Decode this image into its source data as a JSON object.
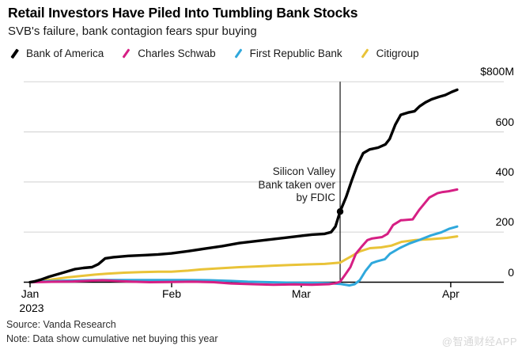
{
  "chart_data": {
    "type": "line",
    "title": "Retail Investors Have Piled Into Tumbling Bank Stocks",
    "subtitle": "SVB's failure, bank contagion fears spur buying",
    "source": "Source: Vanda Research",
    "note": "Note: Data show cumulative net buying this year",
    "watermark": "@智通财经APP",
    "ylabel_unit": "$M (cumulative net buying)",
    "ylim": [
      -20,
      820
    ],
    "grid": "horizontal",
    "legend_position": "top",
    "colors": {
      "grid": "#d8d8d8",
      "axis": "#000000",
      "bank_of_america": "#000000",
      "charles_schwab": "#d61f84",
      "first_republic": "#2fa8dc",
      "citigroup": "#e9c338"
    },
    "y_ticks": [
      {
        "label": "$800M",
        "value": 800
      },
      {
        "label": "600",
        "value": 600
      },
      {
        "label": "400",
        "value": 400
      },
      {
        "label": "200",
        "value": 200
      },
      {
        "label": "0",
        "value": 0
      }
    ],
    "x_ticks": [
      {
        "label": "Jan",
        "sublabel": "2023",
        "f": 0.0
      },
      {
        "label": "Feb",
        "sublabel": "",
        "f": 0.3315
      },
      {
        "label": "Mar",
        "sublabel": "",
        "f": 0.635
      },
      {
        "label": "Apr",
        "sublabel": "",
        "f": 0.985
      }
    ],
    "event": {
      "lines": [
        "Silicon Valley",
        "Bank taken over",
        "by FDIC"
      ],
      "f": 0.726,
      "dot_value": 282
    },
    "series": [
      {
        "name": "Citigroup",
        "color_key": "citigroup",
        "stroke_width": 3,
        "points": [
          [
            0.0,
            0
          ],
          [
            0.03,
            6
          ],
          [
            0.06,
            13
          ],
          [
            0.09,
            20
          ],
          [
            0.12,
            25
          ],
          [
            0.15,
            30
          ],
          [
            0.18,
            34
          ],
          [
            0.22,
            38
          ],
          [
            0.26,
            40
          ],
          [
            0.3,
            42
          ],
          [
            0.331,
            42
          ],
          [
            0.37,
            46
          ],
          [
            0.4,
            51
          ],
          [
            0.45,
            56
          ],
          [
            0.49,
            60
          ],
          [
            0.53,
            63
          ],
          [
            0.57,
            66
          ],
          [
            0.61,
            69
          ],
          [
            0.65,
            71
          ],
          [
            0.69,
            73
          ],
          [
            0.726,
            78
          ],
          [
            0.74,
            92
          ],
          [
            0.753,
            104
          ],
          [
            0.772,
            123
          ],
          [
            0.796,
            136
          ],
          [
            0.822,
            139
          ],
          [
            0.846,
            146
          ],
          [
            0.87,
            161
          ],
          [
            0.902,
            168
          ],
          [
            0.939,
            172
          ],
          [
            0.976,
            177
          ],
          [
            1.0,
            183
          ]
        ]
      },
      {
        "name": "First Republic Bank",
        "color_key": "first_republic",
        "stroke_width": 3,
        "points": [
          [
            0.0,
            0
          ],
          [
            0.04,
            4
          ],
          [
            0.08,
            6
          ],
          [
            0.13,
            8
          ],
          [
            0.18,
            9
          ],
          [
            0.24,
            9
          ],
          [
            0.3,
            9
          ],
          [
            0.36,
            9
          ],
          [
            0.42,
            8
          ],
          [
            0.47,
            5
          ],
          [
            0.51,
            2
          ],
          [
            0.56,
            0
          ],
          [
            0.61,
            -2
          ],
          [
            0.66,
            -3
          ],
          [
            0.7,
            -4
          ],
          [
            0.726,
            -7
          ],
          [
            0.748,
            -13
          ],
          [
            0.76,
            -8
          ],
          [
            0.772,
            8
          ],
          [
            0.785,
            44
          ],
          [
            0.8,
            76
          ],
          [
            0.812,
            83
          ],
          [
            0.831,
            92
          ],
          [
            0.843,
            114
          ],
          [
            0.865,
            136
          ],
          [
            0.889,
            155
          ],
          [
            0.915,
            171
          ],
          [
            0.939,
            187
          ],
          [
            0.963,
            199
          ],
          [
            0.981,
            213
          ],
          [
            1.0,
            222
          ]
        ]
      },
      {
        "name": "Charles Schwab",
        "color_key": "charles_schwab",
        "stroke_width": 3,
        "points": [
          [
            0.0,
            0
          ],
          [
            0.03,
            1
          ],
          [
            0.06,
            2
          ],
          [
            0.1,
            3
          ],
          [
            0.14,
            6
          ],
          [
            0.17,
            8
          ],
          [
            0.2,
            5
          ],
          [
            0.24,
            2
          ],
          [
            0.28,
            0
          ],
          [
            0.33,
            1
          ],
          [
            0.38,
            2
          ],
          [
            0.43,
            0
          ],
          [
            0.47,
            -5
          ],
          [
            0.52,
            -8
          ],
          [
            0.57,
            -10
          ],
          [
            0.62,
            -9
          ],
          [
            0.66,
            -10
          ],
          [
            0.7,
            -8
          ],
          [
            0.715,
            -4
          ],
          [
            0.726,
            2
          ],
          [
            0.737,
            28
          ],
          [
            0.75,
            60
          ],
          [
            0.763,
            114
          ],
          [
            0.778,
            145
          ],
          [
            0.79,
            168
          ],
          [
            0.8,
            174
          ],
          [
            0.824,
            180
          ],
          [
            0.837,
            193
          ],
          [
            0.85,
            228
          ],
          [
            0.868,
            247
          ],
          [
            0.896,
            251
          ],
          [
            0.911,
            288
          ],
          [
            0.935,
            338
          ],
          [
            0.954,
            355
          ],
          [
            0.966,
            360
          ],
          [
            0.98,
            363
          ],
          [
            1.0,
            370
          ]
        ]
      },
      {
        "name": "Bank of America",
        "color_key": "bank_of_america",
        "stroke_width": 3.4,
        "points": [
          [
            0.0,
            0
          ],
          [
            0.01,
            3
          ],
          [
            0.025,
            10
          ],
          [
            0.045,
            22
          ],
          [
            0.065,
            32
          ],
          [
            0.085,
            42
          ],
          [
            0.105,
            52
          ],
          [
            0.125,
            57
          ],
          [
            0.145,
            60
          ],
          [
            0.16,
            72
          ],
          [
            0.176,
            95
          ],
          [
            0.195,
            100
          ],
          [
            0.23,
            105
          ],
          [
            0.27,
            108
          ],
          [
            0.3,
            111
          ],
          [
            0.331,
            115
          ],
          [
            0.37,
            124
          ],
          [
            0.41,
            134
          ],
          [
            0.45,
            144
          ],
          [
            0.49,
            156
          ],
          [
            0.53,
            164
          ],
          [
            0.57,
            172
          ],
          [
            0.6,
            178
          ],
          [
            0.635,
            185
          ],
          [
            0.66,
            190
          ],
          [
            0.69,
            193
          ],
          [
            0.705,
            200
          ],
          [
            0.715,
            222
          ],
          [
            0.726,
            282
          ],
          [
            0.74,
            340
          ],
          [
            0.753,
            405
          ],
          [
            0.766,
            465
          ],
          [
            0.78,
            515
          ],
          [
            0.795,
            530
          ],
          [
            0.815,
            537
          ],
          [
            0.832,
            550
          ],
          [
            0.842,
            572
          ],
          [
            0.855,
            628
          ],
          [
            0.868,
            668
          ],
          [
            0.885,
            677
          ],
          [
            0.9,
            682
          ],
          [
            0.912,
            702
          ],
          [
            0.926,
            718
          ],
          [
            0.94,
            730
          ],
          [
            0.958,
            740
          ],
          [
            0.972,
            747
          ],
          [
            0.988,
            760
          ],
          [
            1.0,
            768
          ]
        ]
      }
    ],
    "legend": [
      {
        "label": "Bank of America",
        "color_key": "bank_of_america",
        "thick": true
      },
      {
        "label": "Charles Schwab",
        "color_key": "charles_schwab",
        "thick": false
      },
      {
        "label": "First Republic Bank",
        "color_key": "first_republic",
        "thick": false
      },
      {
        "label": "Citigroup",
        "color_key": "citigroup",
        "thick": false
      }
    ]
  }
}
